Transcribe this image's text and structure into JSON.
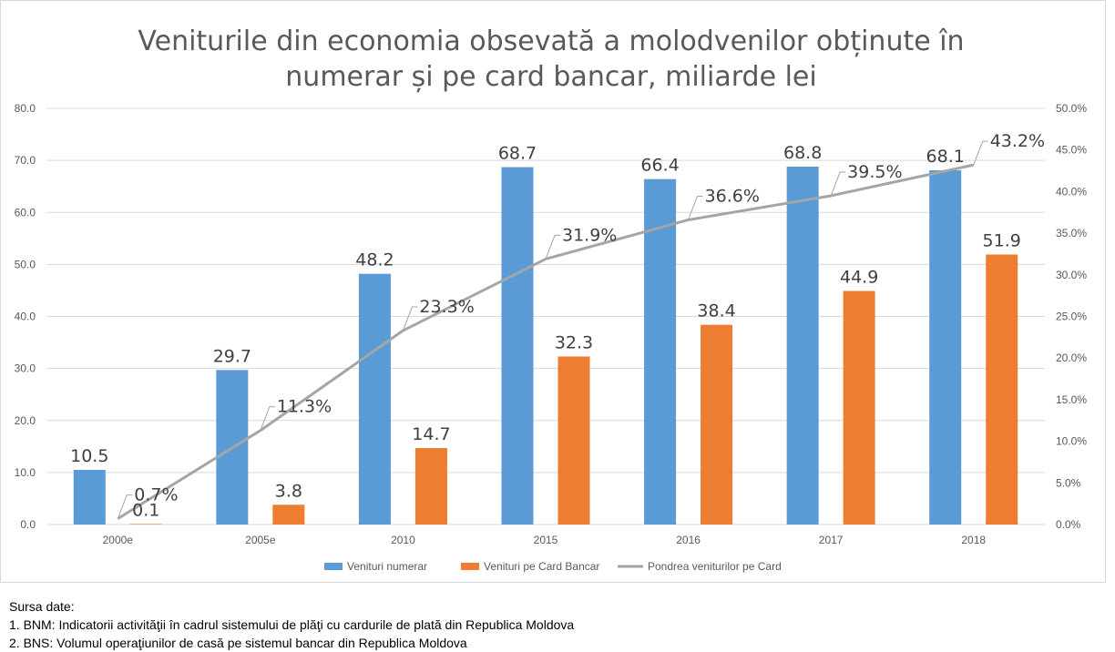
{
  "source": {
    "heading": "Sursa date:",
    "lines": [
      "1. BNM: Indicatorii activităţii în cadrul sistemului de plăţi cu cardurile de plată din Republica Moldova",
      "2. BNS: Volumul operaţiunilor de casă pe sistemul bancar din Republica Moldova"
    ]
  },
  "chart_data": {
    "type": "bar",
    "title_lines": [
      "Veniturile din economia obsevată a molodvenilor obținute în",
      "numerar și pe card bancar, miliarde lei"
    ],
    "categories": [
      "2000e",
      "2005e",
      "2010",
      "2015",
      "2016",
      "2017",
      "2018"
    ],
    "series": [
      {
        "name": "Venituri numerar",
        "type": "bar",
        "axis": "left",
        "color": "#5b9bd5",
        "values": [
          10.5,
          29.7,
          48.2,
          68.7,
          66.4,
          68.8,
          68.1
        ],
        "labels": [
          "10.5",
          "29.7",
          "48.2",
          "68.7",
          "66.4",
          "68.8",
          "68.1"
        ]
      },
      {
        "name": "Venituri pe Card Bancar",
        "type": "bar",
        "axis": "left",
        "color": "#ed7d31",
        "values": [
          0.1,
          3.8,
          14.7,
          32.3,
          38.4,
          44.9,
          51.9
        ],
        "labels": [
          "0.1",
          "3.8",
          "14.7",
          "32.3",
          "38.4",
          "44.9",
          "51.9"
        ]
      },
      {
        "name": "Pondrea veniturilor pe Card",
        "type": "line",
        "axis": "right",
        "color": "#a5a5a5",
        "values": [
          0.7,
          11.3,
          23.3,
          31.9,
          36.6,
          39.5,
          43.2
        ],
        "labels": [
          "0.7%",
          "11.3%",
          "23.3%",
          "31.9%",
          "36.6%",
          "39.5%",
          "43.2%"
        ]
      }
    ],
    "y_left": {
      "min": 0,
      "max": 80,
      "step": 10,
      "ticks": [
        "0.0",
        "10.0",
        "20.0",
        "30.0",
        "40.0",
        "50.0",
        "60.0",
        "70.0",
        "80.0"
      ]
    },
    "y_right": {
      "min": 0,
      "max": 50,
      "step": 5,
      "ticks": [
        "0.0%",
        "5.0%",
        "10.0%",
        "15.0%",
        "20.0%",
        "25.0%",
        "30.0%",
        "35.0%",
        "40.0%",
        "45.0%",
        "50.0%"
      ]
    },
    "grid": true,
    "legend_position": "bottom"
  }
}
